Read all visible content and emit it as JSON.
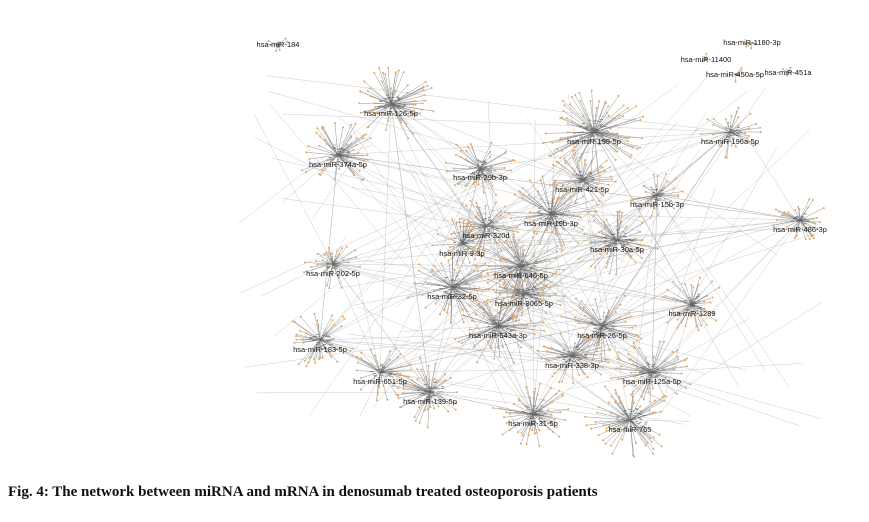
{
  "nodes": [
    {
      "label": "hsa-miR-184"
    },
    {
      "label": "hsa-miR-1180-3p"
    },
    {
      "label": "hsa-miR-11400"
    },
    {
      "label": "hsa-miR-450a-5p"
    },
    {
      "label": "hsa-miR-451a"
    },
    {
      "label": "hsa-miR-126-5p"
    },
    {
      "label": "hsa-miR-374a-5p"
    },
    {
      "label": "hsa-miR-199-5p"
    },
    {
      "label": "hsa-miR-196a-5p"
    },
    {
      "label": "hsa-miR-29b-3p"
    },
    {
      "label": "hsa-miR-421-5p"
    },
    {
      "label": "hsa-miR-15b-3p"
    },
    {
      "label": "hsa-miR-19b-3p"
    },
    {
      "label": "hsa-miR-486-3p"
    },
    {
      "label": "hsa-miR-320d"
    },
    {
      "label": "hsa-miR-30a-5p"
    },
    {
      "label": "hsa-miR-9-3p"
    },
    {
      "label": "hsa-miR-202-5p"
    },
    {
      "label": "hsa-miR-646-5p"
    },
    {
      "label": "hsa-miR-32-5p"
    },
    {
      "label": "hsa-miR-3065-5p"
    },
    {
      "label": "hsa-miR-1289"
    },
    {
      "label": "hsa-miR-643a-3p"
    },
    {
      "label": "hsa-miR-26-5p"
    },
    {
      "label": "hsa-miR-183-5p"
    },
    {
      "label": "hsa-miR-338-3p"
    },
    {
      "label": "hsa-miR-651-5p"
    },
    {
      "label": "hsa-miR-125a-5p"
    },
    {
      "label": "hsa-miR-139-5p"
    },
    {
      "label": "hsa-miR-31-5p"
    },
    {
      "label": "hsa-miR-765"
    }
  ],
  "caption": "Fig. 4: The network between miRNA and mRNA in denosumab treated osteoporosis patients"
}
